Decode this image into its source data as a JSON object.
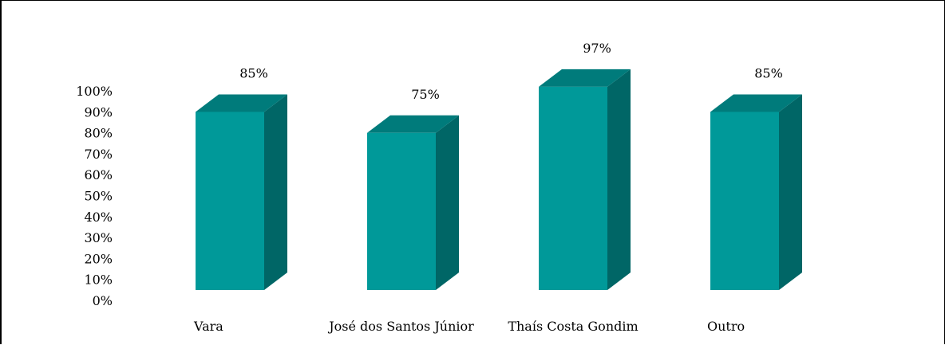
{
  "chart_data": {
    "type": "bar",
    "categories": [
      "Vara",
      "José dos Santos Júnior",
      "Thaís Costa Gondim",
      "Outro"
    ],
    "values": [
      85,
      75,
      97,
      85
    ],
    "data_labels": [
      "85%",
      "75%",
      "97%",
      "85%"
    ],
    "yticks": [
      "0%",
      "10%",
      "20%",
      "30%",
      "40%",
      "50%",
      "60%",
      "70%",
      "80%",
      "90%",
      "100%"
    ],
    "ylim": [
      0,
      100
    ],
    "title": "",
    "xlabel": "",
    "ylabel": "",
    "grid": false,
    "legend": "none",
    "style": "3d-column",
    "colors": {
      "front": "#009999",
      "top": "#007b7b",
      "side": "#006666"
    }
  }
}
